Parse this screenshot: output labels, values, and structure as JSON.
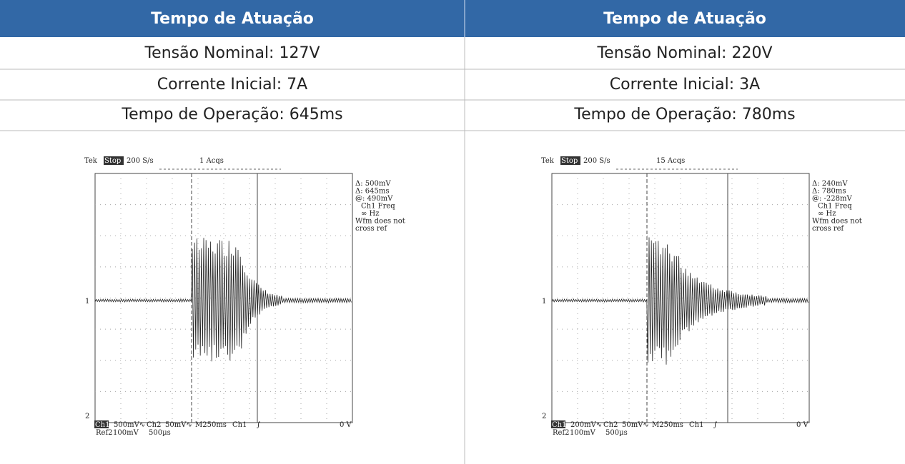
{
  "table": {
    "headers": [
      "Tempo de Atuação",
      "Tempo de Atuação"
    ],
    "rows": [
      [
        "Tensão Nominal: 127V",
        "Tensão Nominal: 220V"
      ],
      [
        "Corrente Inicial: 7A",
        "Corrente Inicial: 3A"
      ],
      [
        "Tempo de Operação: 645ms",
        "Tempo de Operação: 780ms"
      ]
    ]
  },
  "scopes": [
    {
      "brand": "Tek",
      "status": "Stop",
      "rate": "200 S/s",
      "acqs": "1 Acqs",
      "readouts": [
        "Δ: 500mV",
        "Δ: 645ms",
        "@: 490mV",
        "Ch1 Freq",
        "∞ Hz",
        "Wfm does not",
        "cross ref"
      ],
      "ch1_marker": "1",
      "ch2_marker": "2",
      "footer_top": [
        "Ch1",
        "500mV∿",
        "Ch2",
        "50mV∿",
        "M250ms",
        "Ch1",
        "∫",
        "0 V"
      ],
      "footer_bottom": [
        "Ref2",
        "100mV",
        "500µs"
      ]
    },
    {
      "brand": "Tek",
      "status": "Stop",
      "rate": "200 S/s",
      "acqs": "15 Acqs",
      "readouts": [
        "Δ: 240mV",
        "Δ: 780ms",
        "@: -228mV",
        "Ch1 Freq",
        "∞ Hz",
        "Wfm does not",
        "cross ref"
      ],
      "ch1_marker": "1",
      "ch2_marker": "2",
      "footer_top": [
        "Ch1",
        "200mV∿",
        "Ch2",
        "50mV∿",
        "M250ms",
        "Ch1",
        "∫",
        "0 V"
      ],
      "footer_bottom": [
        "Ref2",
        "100mV",
        "500µs"
      ]
    }
  ]
}
